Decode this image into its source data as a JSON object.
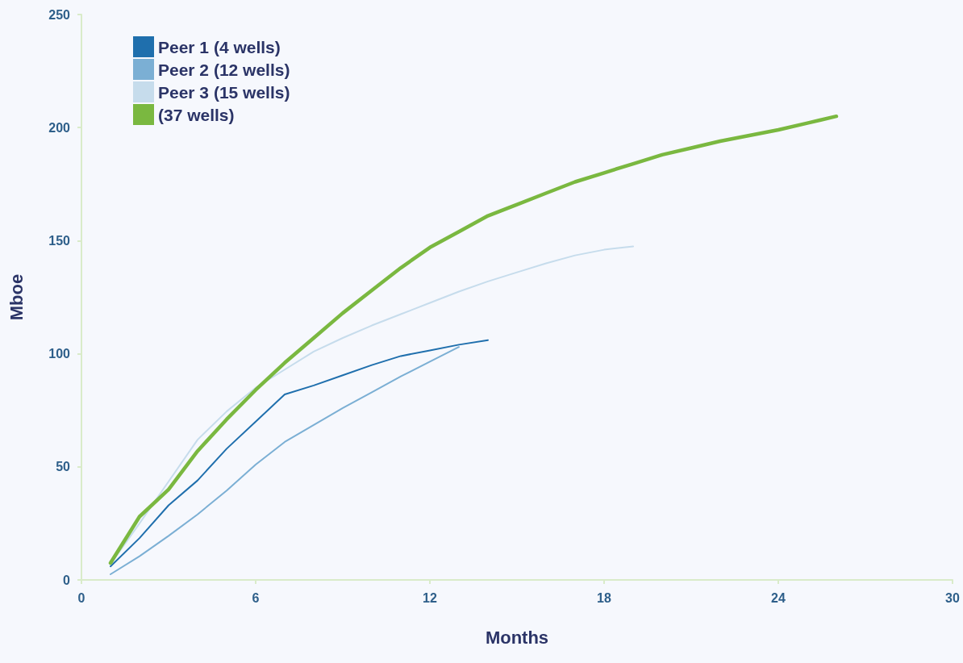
{
  "chart_data": {
    "type": "line",
    "xlabel": "Months",
    "ylabel": "Mboe",
    "xlim": [
      0,
      30
    ],
    "xticks": [
      0,
      6,
      12,
      18,
      24,
      30
    ],
    "ylim": [
      0,
      250
    ],
    "yticks": [
      0,
      50,
      100,
      150,
      200,
      250
    ],
    "grid": false,
    "legend": "top left",
    "marker": "none",
    "line_style": "solid",
    "series": [
      {
        "name": "Peer 1 (4 wells)",
        "color": "#1f6fad",
        "x": [
          1,
          2,
          3,
          4,
          5,
          6,
          7,
          8,
          9,
          10,
          11,
          12,
          13,
          14
        ],
        "values": [
          6,
          18.5,
          33,
          44,
          58,
          70,
          82,
          86,
          90.5,
          95,
          99,
          101.5,
          104,
          106
        ]
      },
      {
        "name": "Peer 2 (12 wells)",
        "color": "#7bafd4",
        "x": [
          1,
          2,
          3,
          4,
          5,
          6,
          7,
          8,
          9,
          10,
          11,
          12,
          13
        ],
        "values": [
          2.5,
          10.5,
          19.5,
          29,
          39.5,
          51,
          61,
          68.5,
          76,
          83,
          90,
          96.5,
          103
        ]
      },
      {
        "name": "Peer 3 (15 wells)",
        "color": "#c6dcec",
        "x": [
          1,
          2,
          3,
          4,
          5,
          6,
          7,
          8,
          9,
          10,
          11,
          12,
          13,
          14,
          15,
          16,
          17,
          18,
          19
        ],
        "values": [
          7,
          25,
          43.5,
          62,
          74.5,
          85,
          93,
          101,
          107,
          112.5,
          117.5,
          122.5,
          127.5,
          132,
          136,
          140,
          143.5,
          146,
          147.5
        ]
      },
      {
        "name": "(37 wells)",
        "color": "#7ab840",
        "x": [
          1,
          2,
          3,
          4,
          5,
          6,
          7,
          8,
          9,
          10,
          11,
          12,
          13,
          14,
          15,
          16,
          17,
          18,
          19,
          20,
          21,
          22,
          23,
          24,
          25,
          26
        ],
        "values": [
          7.5,
          28,
          40,
          57,
          71,
          84,
          96,
          107,
          118,
          128,
          138,
          147,
          154,
          161,
          166,
          171,
          176,
          180,
          184,
          188,
          191,
          194,
          196.5,
          199,
          202,
          205
        ]
      }
    ]
  }
}
